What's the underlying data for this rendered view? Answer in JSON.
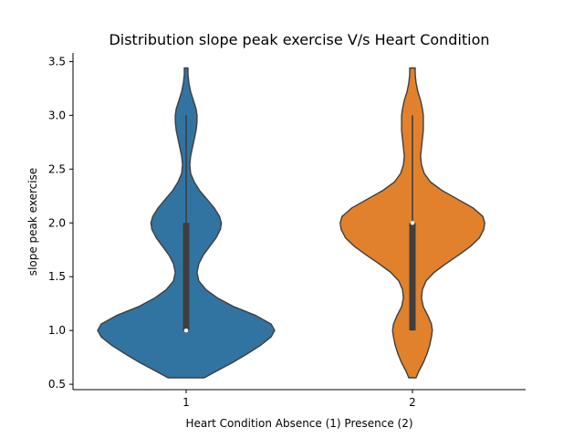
{
  "chart_data": {
    "type": "violin",
    "title": "Distribution slope peak exercise V/s Heart Condition",
    "xlabel": "Heart Condition Absence (1) Presence (2)",
    "ylabel": "slope peak exercise",
    "categories": [
      "1",
      "2"
    ],
    "ylim": [
      0.45,
      3.58
    ],
    "yticks": [
      0.5,
      1.0,
      1.5,
      2.0,
      2.5,
      3.0,
      3.5
    ],
    "ytick_labels": [
      "0.5",
      "1.0",
      "1.5",
      "2.0",
      "2.5",
      "3.0",
      "3.5"
    ],
    "grid": false,
    "legend": "none",
    "series": [
      {
        "category": "1",
        "color": "#3274a1",
        "kde_range": [
          0.56,
          3.44
        ],
        "median": 1.0,
        "q1": 1.0,
        "q3": 2.0,
        "whisker_low": 1.0,
        "whisker_high": 3.0,
        "density": [
          [
            0.56,
            0.2
          ],
          [
            0.62,
            0.33
          ],
          [
            0.7,
            0.51
          ],
          [
            0.78,
            0.67
          ],
          [
            0.86,
            0.82
          ],
          [
            0.94,
            0.94
          ],
          [
            1.0,
            0.98
          ],
          [
            1.06,
            0.94
          ],
          [
            1.14,
            0.77
          ],
          [
            1.22,
            0.53
          ],
          [
            1.3,
            0.35
          ],
          [
            1.38,
            0.22
          ],
          [
            1.46,
            0.14
          ],
          [
            1.54,
            0.12
          ],
          [
            1.62,
            0.14
          ],
          [
            1.7,
            0.19
          ],
          [
            1.78,
            0.26
          ],
          [
            1.86,
            0.33
          ],
          [
            1.94,
            0.38
          ],
          [
            2.0,
            0.39
          ],
          [
            2.06,
            0.37
          ],
          [
            2.14,
            0.31
          ],
          [
            2.22,
            0.23
          ],
          [
            2.3,
            0.15
          ],
          [
            2.38,
            0.09
          ],
          [
            2.46,
            0.05
          ],
          [
            2.54,
            0.04
          ],
          [
            2.62,
            0.05
          ],
          [
            2.7,
            0.07
          ],
          [
            2.78,
            0.09
          ],
          [
            2.86,
            0.11
          ],
          [
            2.94,
            0.12
          ],
          [
            3.0,
            0.12
          ],
          [
            3.06,
            0.11
          ],
          [
            3.14,
            0.08
          ],
          [
            3.22,
            0.05
          ],
          [
            3.3,
            0.03
          ],
          [
            3.38,
            0.02
          ],
          [
            3.44,
            0.02
          ]
        ]
      },
      {
        "category": "2",
        "color": "#e1812c",
        "kde_range": [
          0.56,
          3.44
        ],
        "median": 2.0,
        "q1": 1.0,
        "q3": 2.0,
        "whisker_low": 1.0,
        "whisker_high": 3.0,
        "density": [
          [
            0.56,
            0.04
          ],
          [
            0.62,
            0.07
          ],
          [
            0.7,
            0.12
          ],
          [
            0.78,
            0.16
          ],
          [
            0.86,
            0.19
          ],
          [
            0.94,
            0.21
          ],
          [
            1.0,
            0.22
          ],
          [
            1.06,
            0.21
          ],
          [
            1.14,
            0.17
          ],
          [
            1.22,
            0.12
          ],
          [
            1.3,
            0.1
          ],
          [
            1.38,
            0.11
          ],
          [
            1.46,
            0.15
          ],
          [
            1.54,
            0.24
          ],
          [
            1.62,
            0.37
          ],
          [
            1.7,
            0.51
          ],
          [
            1.78,
            0.64
          ],
          [
            1.86,
            0.74
          ],
          [
            1.94,
            0.79
          ],
          [
            2.0,
            0.8
          ],
          [
            2.06,
            0.78
          ],
          [
            2.14,
            0.67
          ],
          [
            2.22,
            0.5
          ],
          [
            2.3,
            0.33
          ],
          [
            2.38,
            0.2
          ],
          [
            2.46,
            0.13
          ],
          [
            2.54,
            0.1
          ],
          [
            2.62,
            0.09
          ],
          [
            2.7,
            0.1
          ],
          [
            2.78,
            0.11
          ],
          [
            2.86,
            0.12
          ],
          [
            2.94,
            0.12
          ],
          [
            3.0,
            0.12
          ],
          [
            3.06,
            0.11
          ],
          [
            3.14,
            0.09
          ],
          [
            3.22,
            0.06
          ],
          [
            3.3,
            0.04
          ],
          [
            3.38,
            0.03
          ],
          [
            3.44,
            0.03
          ]
        ]
      }
    ]
  }
}
